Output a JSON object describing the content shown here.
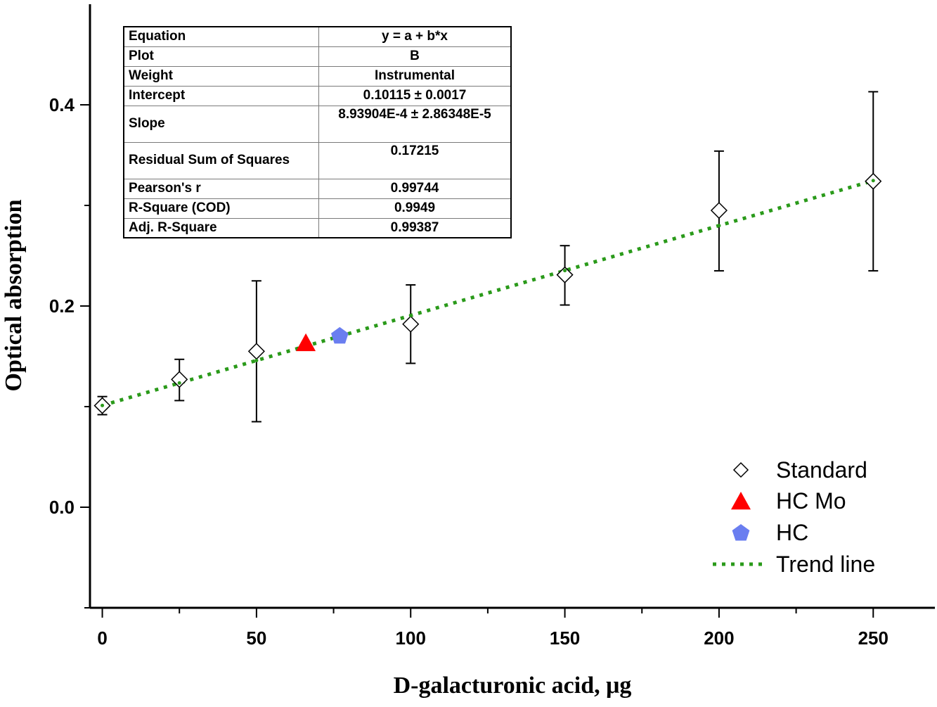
{
  "chart_data": {
    "type": "scatter",
    "xlabel": "D-galacturonic acid, μg",
    "ylabel": "Optical absorption",
    "xlim": [
      -4,
      270
    ],
    "ylim": [
      -0.1,
      0.5
    ],
    "xticks": [
      "0",
      "50",
      "100",
      "150",
      "200",
      "250"
    ],
    "yticks": [
      "0.0",
      "0.2",
      "0.4"
    ],
    "series": [
      {
        "name": "Standard",
        "marker": "open-diamond",
        "color": "#000000",
        "points": [
          {
            "x": 0,
            "y": 0.101,
            "err_low": 0.092,
            "err_high": 0.11
          },
          {
            "x": 25,
            "y": 0.127,
            "err_low": 0.106,
            "err_high": 0.147
          },
          {
            "x": 50,
            "y": 0.155,
            "err_low": 0.085,
            "err_high": 0.225
          },
          {
            "x": 100,
            "y": 0.182,
            "err_low": 0.143,
            "err_high": 0.221
          },
          {
            "x": 150,
            "y": 0.231,
            "err_low": 0.201,
            "err_high": 0.26
          },
          {
            "x": 200,
            "y": 0.295,
            "err_low": 0.235,
            "err_high": 0.354
          },
          {
            "x": 250,
            "y": 0.324,
            "err_low": 0.235,
            "err_high": 0.413
          }
        ]
      },
      {
        "name": "HC Mo",
        "marker": "filled-triangle",
        "color": "#ff0000",
        "points": [
          {
            "x": 66,
            "y": 0.163
          }
        ]
      },
      {
        "name": "HC",
        "marker": "filled-pentagon",
        "color": "#6a7ef0",
        "points": [
          {
            "x": 77,
            "y": 0.17
          }
        ]
      },
      {
        "name": "Trend line",
        "type": "line",
        "style": "dotted",
        "color": "#2a9a1a",
        "intercept": 0.10115,
        "slope": 0.000893904,
        "x_range": [
          0,
          250
        ]
      }
    ],
    "legend_position": "bottom-right",
    "fit_table": [
      {
        "key": "Equation",
        "value": "y = a + b*x"
      },
      {
        "key": "Plot",
        "value": "B"
      },
      {
        "key": "Weight",
        "value": "Instrumental"
      },
      {
        "key": "Intercept",
        "value": "0.10115 ± 0.0017"
      },
      {
        "key": "Slope",
        "value": "8.93904E-4 ± 2.86348E-5"
      },
      {
        "key": "Residual Sum of Squares",
        "value": "0.17215"
      },
      {
        "key": "Pearson's r",
        "value": "0.99744"
      },
      {
        "key": "R-Square (COD)",
        "value": "0.9949"
      },
      {
        "key": "Adj. R-Square",
        "value": "0.99387"
      }
    ]
  }
}
